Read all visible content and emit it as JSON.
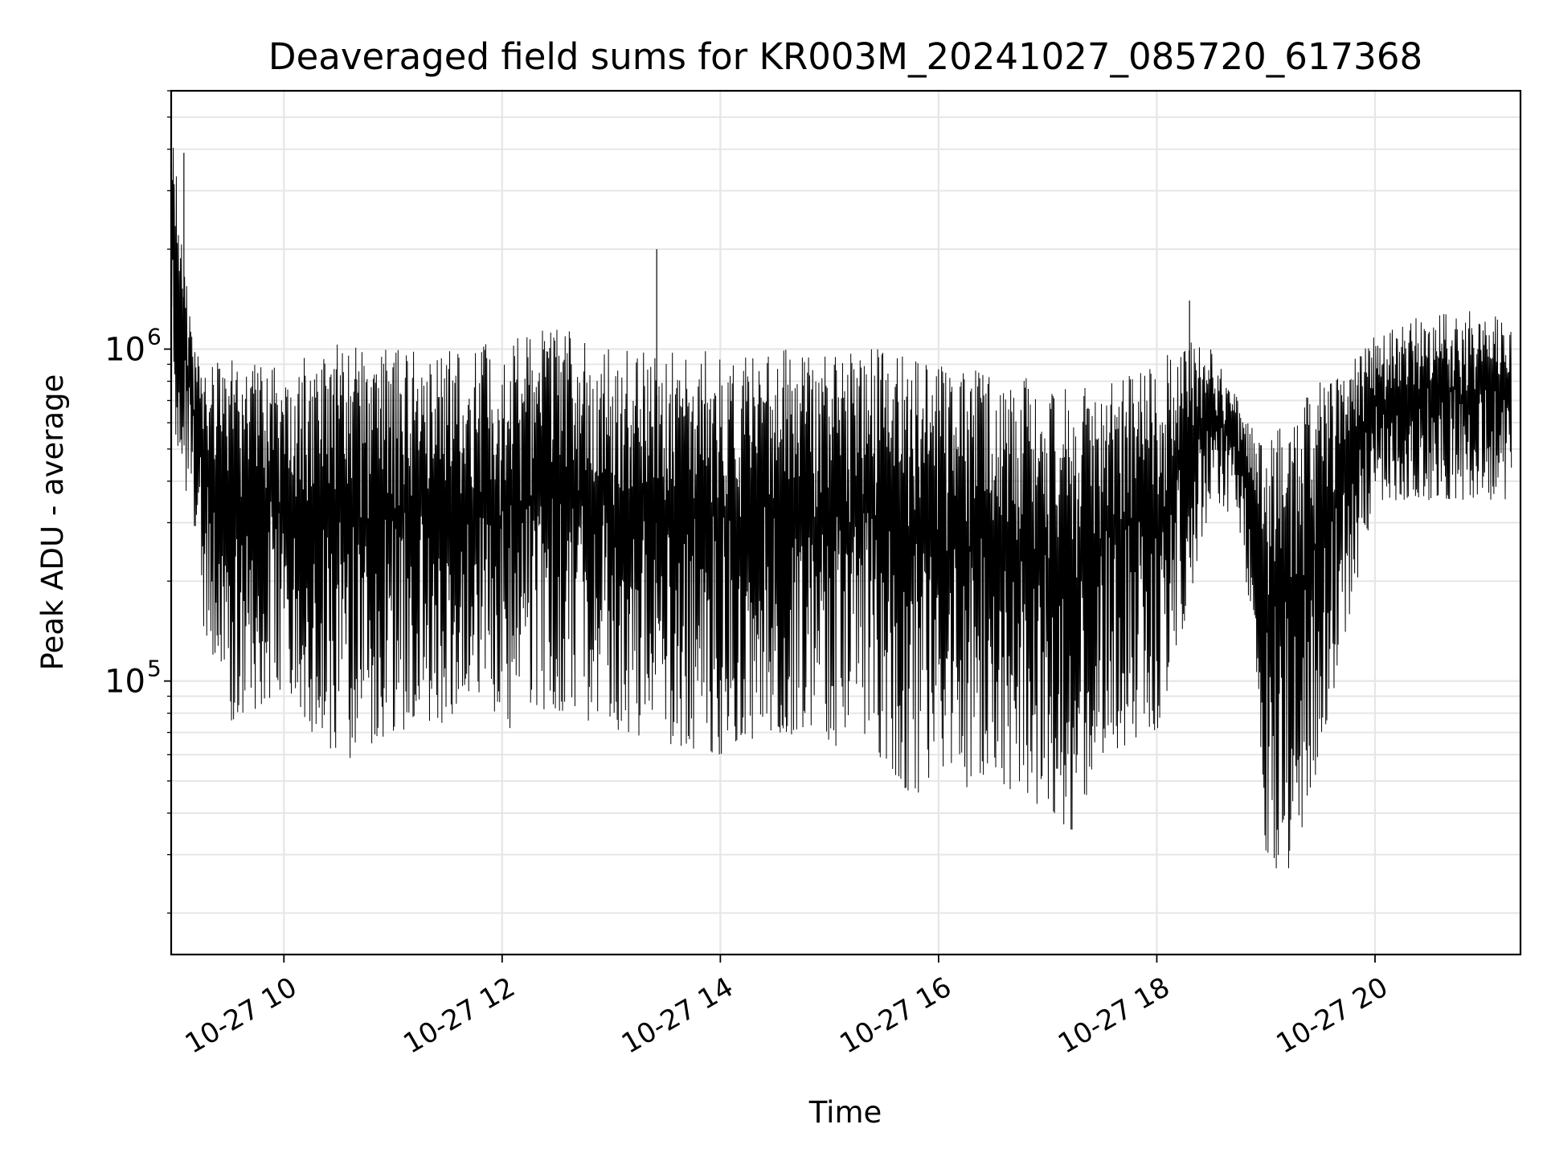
{
  "chart_data": {
    "type": "line",
    "title": "Deaveraged field sums for KR003M_20241027_085720_617368",
    "xlabel": "Time",
    "ylabel": "Peak ADU - average",
    "y_scale": "log",
    "ylim": [
      15000,
      6000000
    ],
    "xlim": [
      "2024-10-27T08:58",
      "2024-10-27T21:20"
    ],
    "x_ticks": [
      "10-27 10",
      "10-27 12",
      "10-27 14",
      "10-27 16",
      "10-27 18",
      "10-27 20"
    ],
    "y_ticks": [
      {
        "base": "10",
        "exp": "5"
      },
      {
        "base": "10",
        "exp": "6"
      }
    ],
    "grid": true,
    "line_color": "#000000",
    "series": [
      {
        "x": [
          "08:58",
          "09:00",
          "09:05",
          "09:10",
          "09:15",
          "09:30",
          "10:00",
          "10:30",
          "11:00",
          "11:30",
          "12:00",
          "12:30",
          "13:00",
          "13:30",
          "14:00",
          "14:30",
          "15:00",
          "15:30",
          "15:45",
          "16:00",
          "16:30",
          "17:00",
          "17:15",
          "17:30",
          "18:00",
          "18:15",
          "18:30",
          "18:45",
          "18:55",
          "19:00",
          "19:10",
          "19:20",
          "19:30",
          "19:45",
          "20:00",
          "20:30",
          "21:00",
          "21:15"
        ],
        "y_high": [
          4600000,
          4000000,
          1800000,
          1100000,
          950000,
          950000,
          900000,
          1050000,
          1000000,
          1000000,
          1050000,
          1200000,
          1000000,
          1000000,
          1000000,
          1000000,
          1000000,
          1050000,
          950000,
          900000,
          850000,
          800000,
          750000,
          800000,
          900000,
          1100000,
          1000000,
          700000,
          550000,
          500000,
          650000,
          700000,
          800000,
          900000,
          1100000,
          1300000,
          1300000,
          1200000
        ],
        "y_low": [
          800000,
          550000,
          400000,
          300000,
          150000,
          75000,
          90000,
          55000,
          70000,
          75000,
          70000,
          80000,
          70000,
          65000,
          60000,
          70000,
          65000,
          55000,
          42000,
          45000,
          50000,
          40000,
          35000,
          60000,
          70000,
          150000,
          350000,
          300000,
          100000,
          30000,
          25000,
          35000,
          60000,
          150000,
          350000,
          350000,
          350000,
          350000
        ],
        "spikes": [
          {
            "x": "09:05",
            "y": 3900000
          },
          {
            "x": "13:25",
            "y": 2000000
          },
          {
            "x": "18:18",
            "y": 1400000
          }
        ]
      }
    ]
  }
}
